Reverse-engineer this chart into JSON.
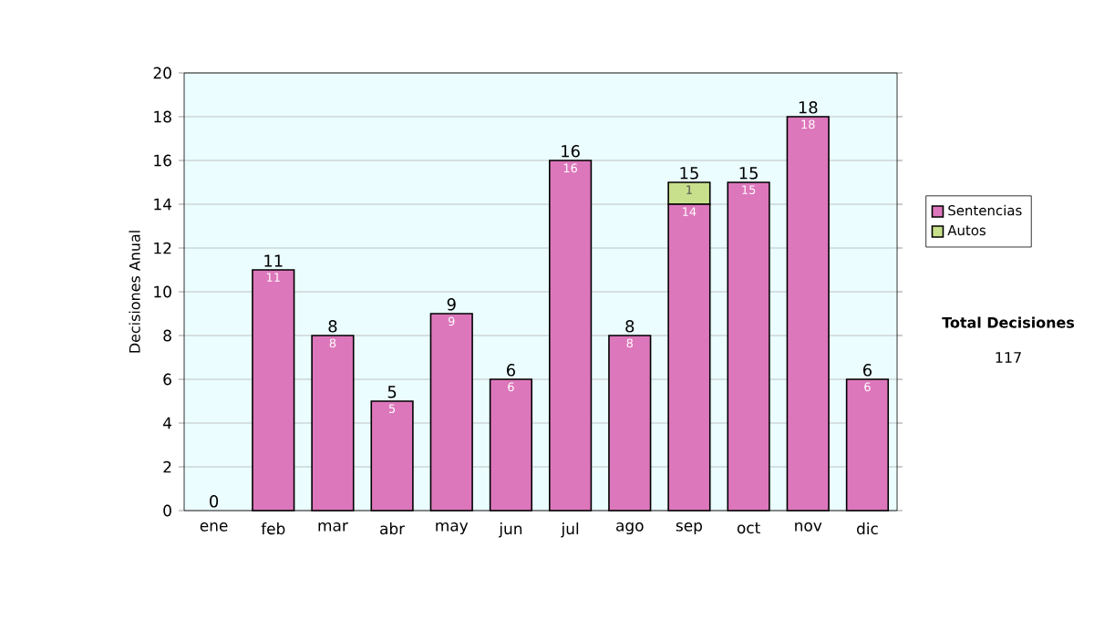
{
  "chart_data": {
    "type": "bar",
    "stacked": true,
    "ylabel": "Decisiones Anual",
    "categories": [
      "ene",
      "feb",
      "mar",
      "abr",
      "may",
      "jun",
      "jul",
      "ago",
      "sep",
      "oct",
      "nov",
      "dic"
    ],
    "series": [
      {
        "name": "Sentencias",
        "color": "#dd77bb",
        "values": [
          0,
          11,
          8,
          5,
          9,
          6,
          16,
          8,
          14,
          15,
          18,
          6
        ],
        "value_labels": [
          null,
          "11",
          "8",
          "5",
          "9",
          "6",
          "16",
          "8",
          "14",
          "15",
          "18",
          "6"
        ]
      },
      {
        "name": "Autos",
        "color": "#c8e08c",
        "values": [
          0,
          0,
          0,
          0,
          0,
          0,
          0,
          0,
          1,
          0,
          0,
          0
        ],
        "value_labels": [
          null,
          null,
          null,
          null,
          null,
          null,
          null,
          null,
          "1",
          null,
          null,
          null
        ]
      }
    ],
    "totals": [
      "0",
      "11",
      "8",
      "5",
      "9",
      "6",
      "16",
      "8",
      "15",
      "15",
      "18",
      "6"
    ],
    "ylim": [
      0,
      20
    ],
    "yticks": [
      0,
      2,
      4,
      6,
      8,
      10,
      12,
      14,
      16,
      18,
      20
    ],
    "grid": "y",
    "legend": "right",
    "annotations": [
      "**Total Decisiones**",
      "117"
    ]
  }
}
